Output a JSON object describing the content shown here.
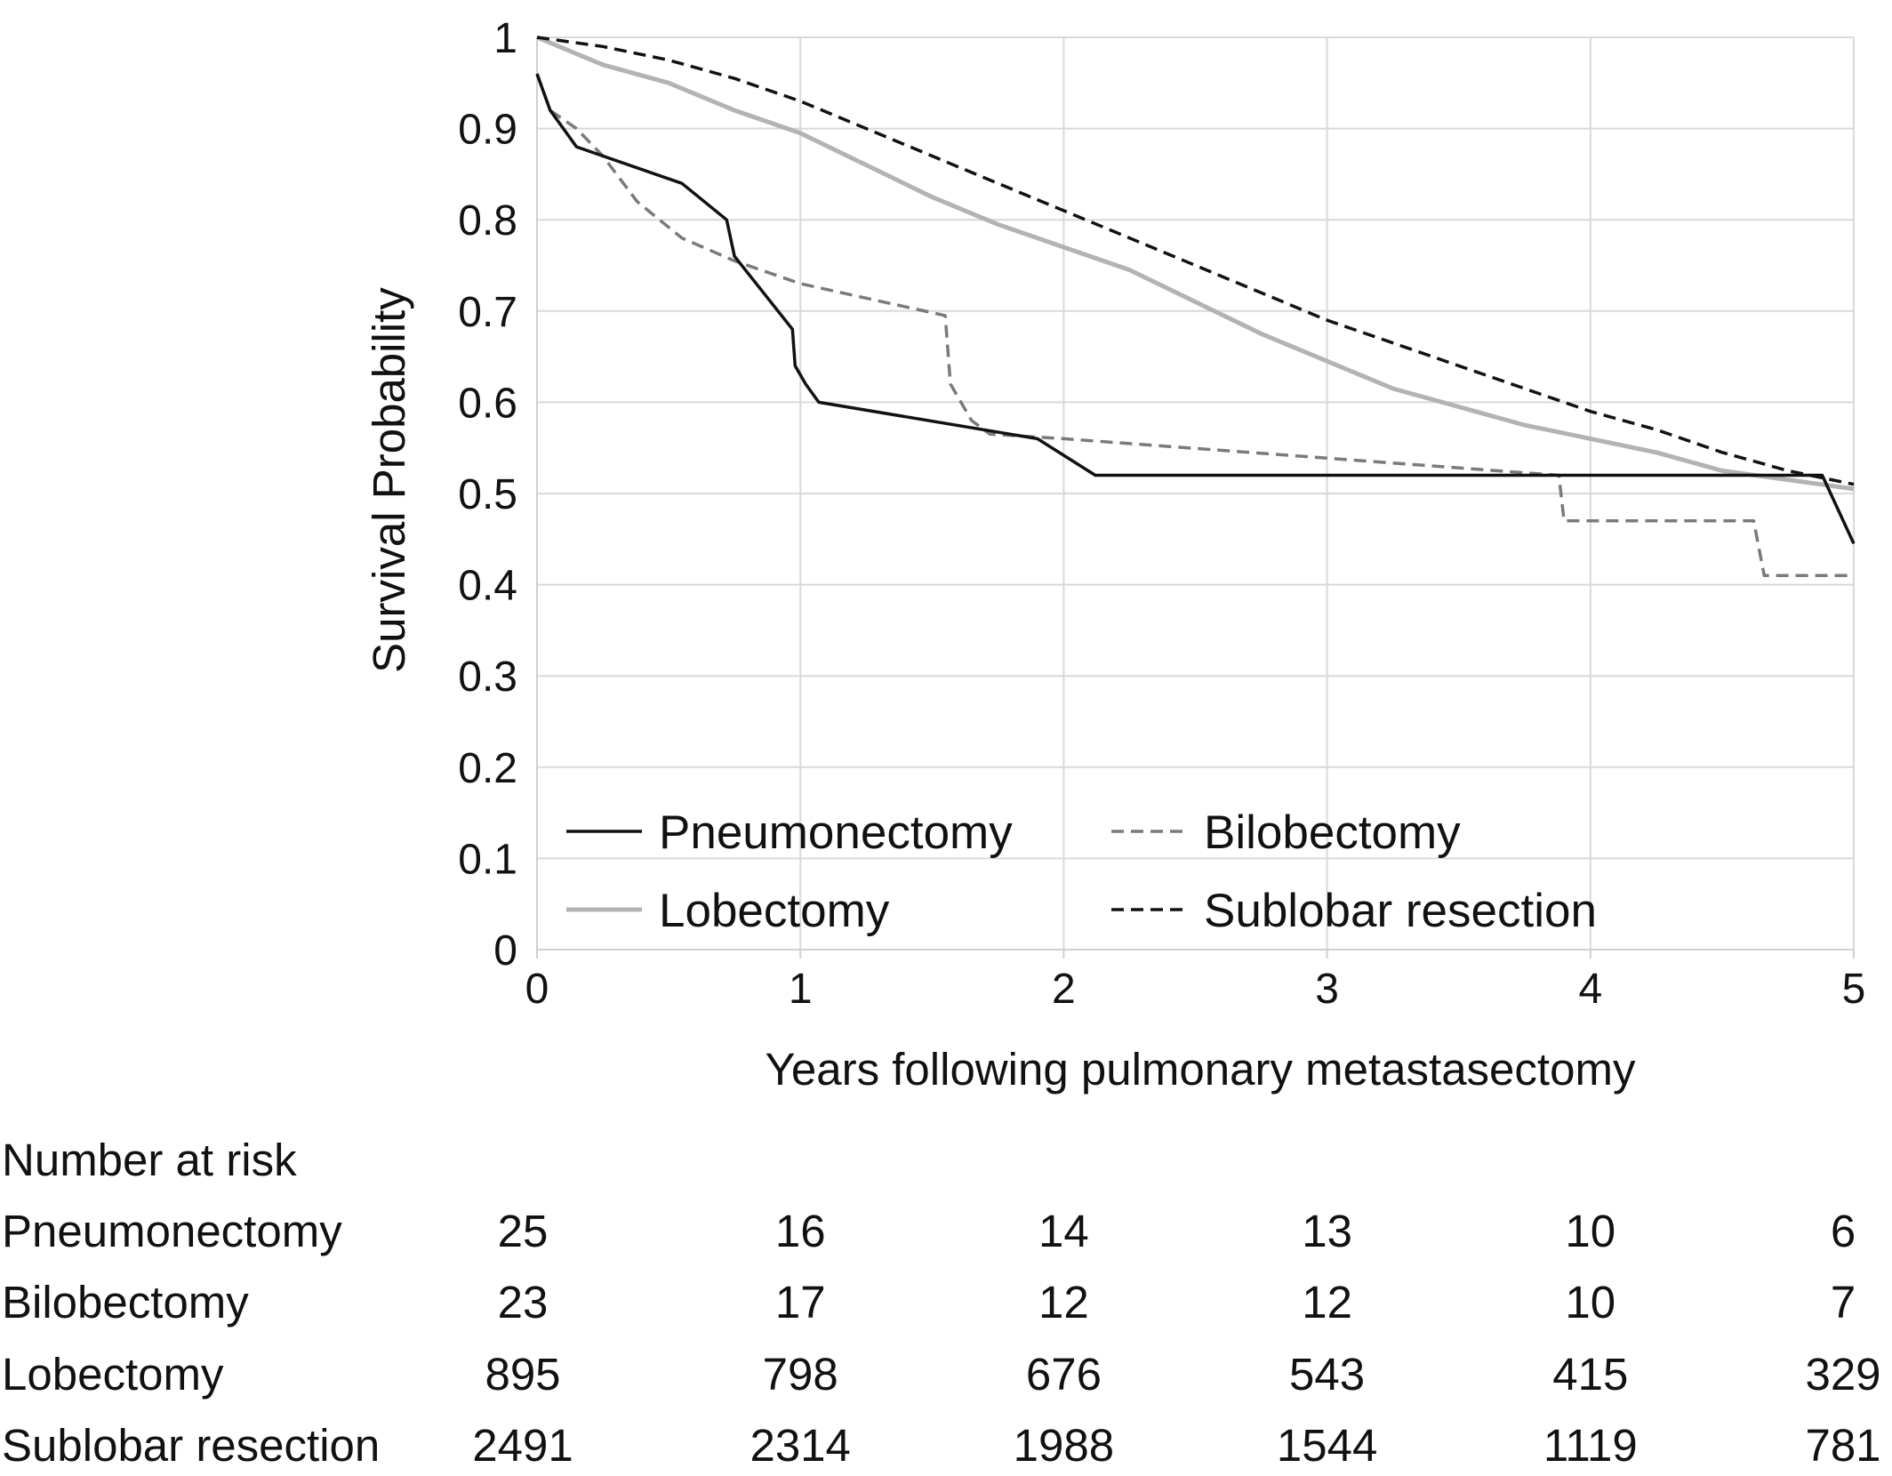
{
  "chart_data": {
    "type": "line",
    "title": "",
    "xlabel": "Years following pulmonary metastasectomy",
    "ylabel": "Survival Probability",
    "xlim": [
      0,
      5
    ],
    "ylim": [
      0,
      1
    ],
    "x_ticks": [
      "0",
      "1",
      "2",
      "3",
      "4",
      "5"
    ],
    "y_ticks": [
      "0",
      "0.1",
      "0.2",
      "0.3",
      "0.4",
      "0.5",
      "0.6",
      "0.7",
      "0.8",
      "0.9",
      "1"
    ],
    "grid": true,
    "legend_position": "bottom-inside",
    "series": [
      {
        "name": "Pneumonectomy",
        "color": "#111111",
        "dash": "solid",
        "points": [
          [
            0,
            0.96
          ],
          [
            0.05,
            0.92
          ],
          [
            0.15,
            0.88
          ],
          [
            0.55,
            0.84
          ],
          [
            0.72,
            0.8
          ],
          [
            0.75,
            0.76
          ],
          [
            0.97,
            0.68
          ],
          [
            0.98,
            0.64
          ],
          [
            1.02,
            0.62
          ],
          [
            1.07,
            0.6
          ],
          [
            1.9,
            0.56
          ],
          [
            2.12,
            0.52
          ],
          [
            4.88,
            0.52
          ],
          [
            5.0,
            0.445
          ]
        ]
      },
      {
        "name": "Bilobectomy",
        "color": "#7a7a7a",
        "dash": "dashed",
        "points": [
          [
            0,
            0.96
          ],
          [
            0.05,
            0.92
          ],
          [
            0.15,
            0.9
          ],
          [
            0.25,
            0.87
          ],
          [
            0.38,
            0.82
          ],
          [
            0.55,
            0.78
          ],
          [
            0.75,
            0.755
          ],
          [
            1.0,
            0.73
          ],
          [
            1.55,
            0.695
          ],
          [
            1.57,
            0.62
          ],
          [
            1.65,
            0.58
          ],
          [
            1.72,
            0.565
          ],
          [
            2.0,
            0.56
          ],
          [
            3.88,
            0.52
          ],
          [
            3.9,
            0.47
          ],
          [
            4.62,
            0.47
          ],
          [
            4.66,
            0.41
          ],
          [
            5.0,
            0.41
          ]
        ]
      },
      {
        "name": "Lobectomy",
        "color": "#b3b3b3",
        "dash": "solid",
        "points": [
          [
            0,
            1.0
          ],
          [
            0.25,
            0.97
          ],
          [
            0.5,
            0.95
          ],
          [
            0.75,
            0.92
          ],
          [
            1.0,
            0.895
          ],
          [
            1.25,
            0.86
          ],
          [
            1.5,
            0.825
          ],
          [
            1.75,
            0.795
          ],
          [
            2.0,
            0.77
          ],
          [
            2.25,
            0.745
          ],
          [
            2.5,
            0.71
          ],
          [
            2.75,
            0.675
          ],
          [
            3.0,
            0.645
          ],
          [
            3.25,
            0.615
          ],
          [
            3.5,
            0.595
          ],
          [
            3.75,
            0.575
          ],
          [
            4.0,
            0.56
          ],
          [
            4.25,
            0.545
          ],
          [
            4.5,
            0.525
          ],
          [
            4.75,
            0.515
          ],
          [
            5.0,
            0.505
          ]
        ]
      },
      {
        "name": "Sublobar resection",
        "color": "#111111",
        "dash": "dashed",
        "points": [
          [
            0,
            1.0
          ],
          [
            0.25,
            0.99
          ],
          [
            0.5,
            0.975
          ],
          [
            0.75,
            0.955
          ],
          [
            1.0,
            0.93
          ],
          [
            1.25,
            0.9
          ],
          [
            1.5,
            0.87
          ],
          [
            1.75,
            0.84
          ],
          [
            2.0,
            0.81
          ],
          [
            2.25,
            0.78
          ],
          [
            2.5,
            0.75
          ],
          [
            2.75,
            0.72
          ],
          [
            3.0,
            0.69
          ],
          [
            3.25,
            0.665
          ],
          [
            3.5,
            0.64
          ],
          [
            3.75,
            0.615
          ],
          [
            4.0,
            0.59
          ],
          [
            4.25,
            0.57
          ],
          [
            4.5,
            0.545
          ],
          [
            4.75,
            0.525
          ],
          [
            5.0,
            0.51
          ]
        ]
      }
    ],
    "risk_table": {
      "title": "Number at risk",
      "rows": [
        {
          "label": "Pneumonectomy",
          "values": [
            "25",
            "16",
            "14",
            "13",
            "10",
            "6"
          ]
        },
        {
          "label": "Bilobectomy",
          "values": [
            "23",
            "17",
            "12",
            "12",
            "10",
            "7"
          ]
        },
        {
          "label": "Lobectomy",
          "values": [
            "895",
            "798",
            "676",
            "543",
            "415",
            "329"
          ]
        },
        {
          "label": "Sublobar resection",
          "values": [
            "2491",
            "2314",
            "1988",
            "1544",
            "1119",
            "781"
          ]
        }
      ]
    }
  }
}
